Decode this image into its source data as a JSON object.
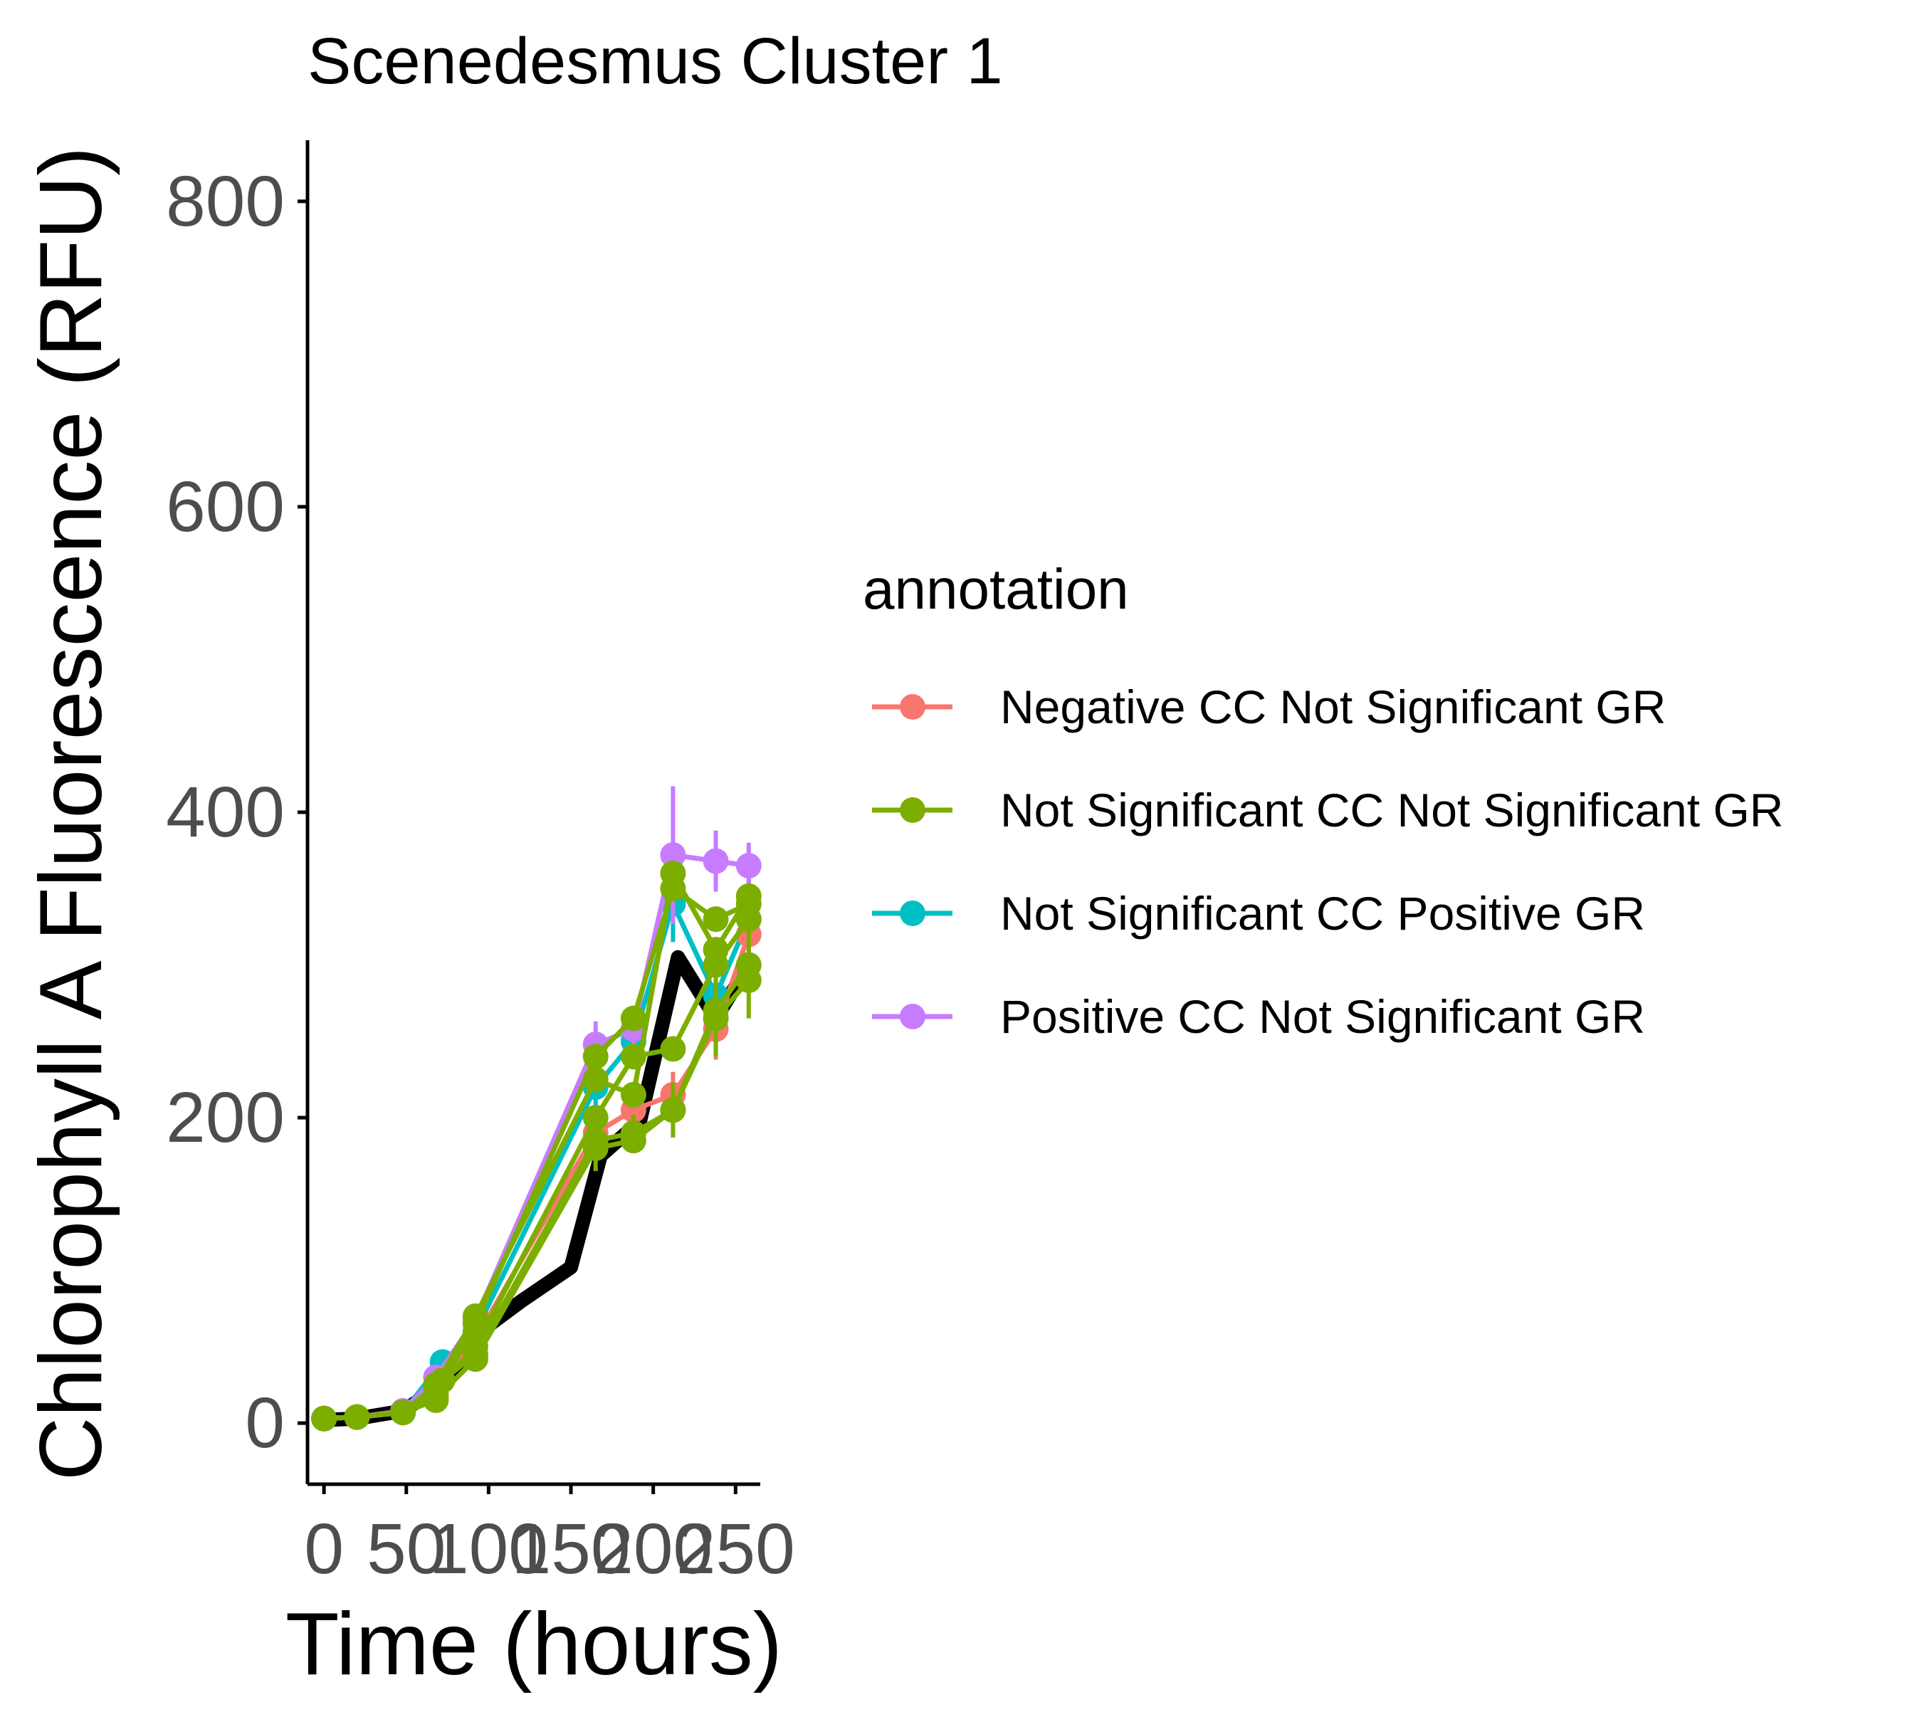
{
  "chart_data": {
    "type": "line",
    "title": "Scenedesmus Cluster 1",
    "xlabel": "Time (hours)",
    "ylabel": "Chlorophyll A Fluorescence (RFU)",
    "xlim": [
      -10,
      265
    ],
    "ylim": [
      -40,
      840
    ],
    "xticks": [
      0,
      50,
      100,
      150,
      200,
      250
    ],
    "yticks": [
      0,
      200,
      400,
      600,
      800
    ],
    "x_tick_labels": [
      "0",
      "50",
      "100",
      "150",
      "200",
      "250"
    ],
    "y_tick_labels": [
      "0",
      "200",
      "400",
      "600",
      "800"
    ],
    "grid": false,
    "legend": {
      "title": "annotation",
      "placement": "right"
    },
    "reference_line": {
      "color": "#000000",
      "x": [
        0,
        20,
        48,
        72,
        95,
        120,
        150,
        168,
        192,
        215,
        238,
        258
      ],
      "y": [
        2,
        3,
        8,
        25,
        60,
        80,
        102,
        175,
        198,
        305,
        265,
        300
      ]
    },
    "series": [
      {
        "name": "Negative CC Not Significant GR",
        "color": "#F8766D",
        "x": [
          0,
          20,
          48,
          68,
          92,
          165,
          188,
          212,
          238,
          258
        ],
        "y": [
          3,
          4,
          7,
          20,
          55,
          190,
          205,
          215,
          258,
          320
        ],
        "err": [
          0,
          0,
          0,
          3,
          5,
          12,
          10,
          15,
          20,
          25
        ]
      },
      {
        "name": "Not Significant CC Not Significant GR",
        "color": "#7CAE00",
        "x": [
          0,
          20,
          48,
          68,
          72,
          92,
          165,
          188,
          212,
          238,
          258
        ],
        "y": [
          3,
          4,
          7,
          15,
          28,
          45,
          185,
          190,
          205,
          270,
          300
        ],
        "err": [
          0,
          0,
          0,
          3,
          4,
          6,
          20,
          12,
          18,
          30,
          35
        ],
        "traces": [
          {
            "x": [
              0,
              20,
              48,
              68,
              92,
              165,
              188,
              212,
              238,
              258
            ],
            "y": [
              3,
              4,
              7,
              18,
              65,
              240,
              265,
              350,
              330,
              340
            ]
          },
          {
            "x": [
              0,
              20,
              48,
              68,
              92,
              165,
              188,
              212,
              238,
              258
            ],
            "y": [
              3,
              4,
              7,
              22,
              50,
              200,
              240,
              245,
              300,
              330
            ]
          },
          {
            "x": [
              0,
              20,
              48,
              68,
              92,
              165,
              188,
              212,
              238,
              258
            ],
            "y": [
              3,
              4,
              7,
              16,
              42,
              180,
              185,
              205,
              265,
              290
            ]
          },
          {
            "x": [
              0,
              20,
              48,
              68,
              92,
              165,
              188,
              212,
              238,
              258
            ],
            "y": [
              3,
              4,
              7,
              25,
              70,
              225,
              215,
              360,
              310,
              345
            ]
          }
        ]
      },
      {
        "name": "Not Significant CC Positive GR",
        "color": "#00BFC4",
        "x": [
          0,
          20,
          48,
          72,
          92,
          165,
          188,
          212,
          238,
          258
        ],
        "y": [
          3,
          4,
          7,
          40,
          60,
          220,
          250,
          340,
          280,
          330
        ],
        "err": [
          0,
          0,
          0,
          4,
          6,
          15,
          15,
          25,
          30,
          30
        ]
      },
      {
        "name": "Positive CC Not Significant GR",
        "color": "#C77CFF",
        "x": [
          0,
          20,
          48,
          68,
          92,
          165,
          188,
          212,
          238,
          258
        ],
        "y": [
          3,
          4,
          8,
          30,
          68,
          248,
          258,
          372,
          368,
          365
        ],
        "err": [
          0,
          0,
          0,
          4,
          6,
          15,
          12,
          45,
          20,
          15
        ]
      }
    ]
  }
}
